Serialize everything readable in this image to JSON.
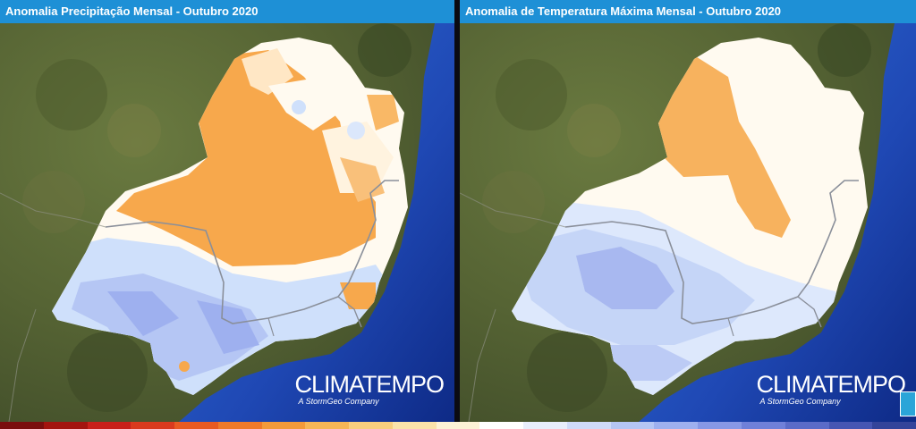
{
  "panels": [
    {
      "title": "Anomalia Precipitação Mensal - Outubro 2020",
      "brand": "CLIMATEMPO",
      "brand_sub": "A StormGeo Company"
    },
    {
      "title": "Anomalia de Temperatura Máxima Mensal - Outubro 2020",
      "brand": "CLIMATEMPO",
      "brand_sub": "A StormGeo Company"
    }
  ],
  "colors": {
    "title_bar": "#1e90d6",
    "land": "#5f6b3a",
    "ocean": "#1a3fa8",
    "anomaly_positive": "#f7a84c",
    "anomaly_neutral": "#fffaf0",
    "anomaly_negative_light": "#cfe0fb",
    "anomaly_negative": "#9eb0ef"
  },
  "scale_colors": [
    "#7a0e0e",
    "#a3140f",
    "#c8201a",
    "#d93a1e",
    "#e85a22",
    "#ef7a2a",
    "#f39a3a",
    "#f6b656",
    "#f9cf7e",
    "#fbe3aa",
    "#fdf2d6",
    "#ffffff",
    "#e8eefc",
    "#cfdbf9",
    "#b5c6f4",
    "#9eb0ef",
    "#8798e6",
    "#6f80d9",
    "#5a6bc8",
    "#4656b3",
    "#33449a"
  ]
}
